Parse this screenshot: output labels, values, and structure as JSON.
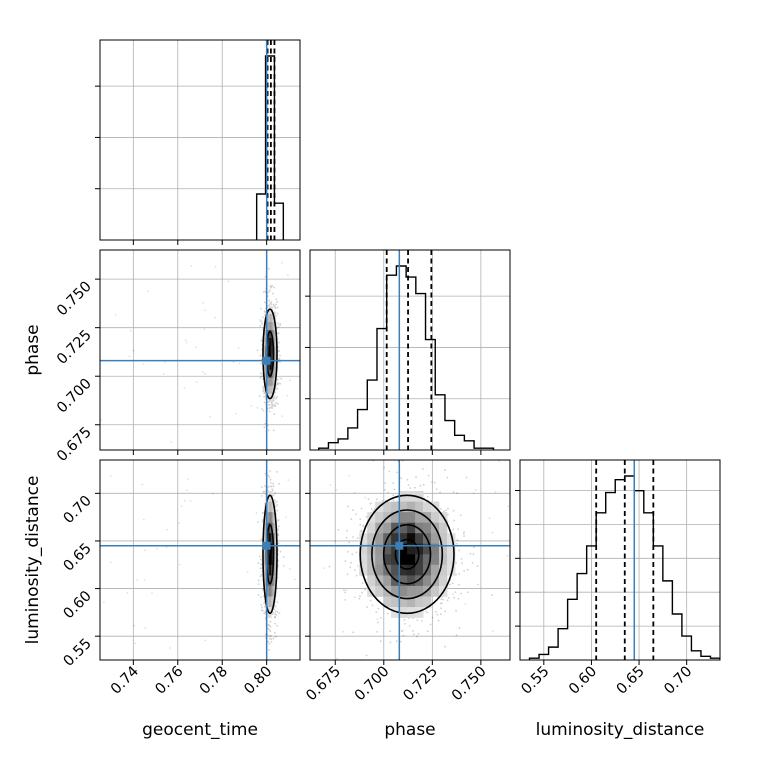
{
  "truth_color": "#3b7fb8",
  "params": [
    {
      "name": "geocent_time",
      "label": "geocent_time",
      "range": [
        0.725,
        0.815
      ],
      "ticks": [
        0.74,
        0.76,
        0.78,
        0.8
      ],
      "tick_labels": [
        "0.74",
        "0.76",
        "0.78",
        "0.80"
      ]
    },
    {
      "name": "phase",
      "label": "phase",
      "range": [
        0.662,
        0.765
      ],
      "ticks": [
        0.675,
        0.7,
        0.725,
        0.75
      ],
      "tick_labels": [
        "0.675",
        "0.700",
        "0.725",
        "0.750"
      ]
    },
    {
      "name": "luminosity_distance",
      "label": "luminosity_distance",
      "range": [
        0.525,
        0.735
      ],
      "ticks": [
        0.55,
        0.6,
        0.65,
        0.7
      ],
      "tick_labels": [
        "0.55",
        "0.60",
        "0.65",
        "0.70"
      ]
    }
  ],
  "chart_data": [
    {
      "type": "bar",
      "title": "",
      "xlabel": "geocent_time",
      "panel": "marginal geocent_time",
      "bin_edges": [
        0.7955,
        0.7995,
        0.8035,
        0.8075
      ],
      "values": [
        0.25,
        1.0,
        0.2
      ],
      "quantiles": [
        0.8004,
        0.8019,
        0.8035
      ],
      "truth": 0.8
    },
    {
      "type": "bar",
      "title": "",
      "xlabel": "phase",
      "panel": "marginal phase",
      "bin_edges": [
        0.6665,
        0.6715,
        0.6765,
        0.6815,
        0.6865,
        0.6915,
        0.6965,
        0.7015,
        0.7065,
        0.7115,
        0.7165,
        0.7215,
        0.7265,
        0.7315,
        0.7365,
        0.7415,
        0.7465,
        0.7515,
        0.7565
      ],
      "values": [
        0.01,
        0.04,
        0.06,
        0.12,
        0.22,
        0.38,
        0.66,
        0.95,
        1.0,
        0.94,
        0.85,
        0.6,
        0.3,
        0.16,
        0.08,
        0.05,
        0.01,
        0.01
      ],
      "quantiles": [
        0.7015,
        0.7125,
        0.7245
      ],
      "truth": 0.708
    },
    {
      "type": "bar",
      "title": "",
      "xlabel": "luminosity_distance",
      "panel": "marginal luminosity_distance",
      "bin_edges": [
        0.535,
        0.545,
        0.555,
        0.565,
        0.575,
        0.585,
        0.595,
        0.605,
        0.615,
        0.625,
        0.635,
        0.645,
        0.655,
        0.665,
        0.675,
        0.685,
        0.695,
        0.705,
        0.715,
        0.725,
        0.735
      ],
      "values": [
        0.01,
        0.03,
        0.07,
        0.17,
        0.33,
        0.47,
        0.62,
        0.8,
        0.91,
        0.98,
        1.0,
        0.92,
        0.8,
        0.62,
        0.43,
        0.25,
        0.13,
        0.05,
        0.02,
        0.01
      ],
      "quantiles": [
        0.605,
        0.635,
        0.665
      ],
      "truth": 0.645
    },
    {
      "type": "scatter",
      "title": "",
      "xlabel": "geocent_time",
      "ylabel": "phase",
      "panel": "2D geocent_time vs phase",
      "center": [
        0.8015,
        0.7115
      ],
      "spread": [
        0.0015,
        0.0115
      ],
      "contour_sigmas": [
        1.0,
        2.0
      ],
      "truth": [
        0.8,
        0.708
      ]
    },
    {
      "type": "scatter",
      "title": "",
      "xlabel": "geocent_time",
      "ylabel": "luminosity_distance",
      "panel": "2D geocent_time vs luminosity_distance",
      "center": [
        0.8015,
        0.636
      ],
      "spread": [
        0.0015,
        0.031
      ],
      "contour_sigmas": [
        1.0,
        2.0
      ],
      "truth": [
        0.8,
        0.645
      ]
    },
    {
      "type": "scatter",
      "title": "",
      "xlabel": "phase",
      "ylabel": "luminosity_distance",
      "panel": "2D phase vs luminosity_distance",
      "center": [
        0.712,
        0.636
      ],
      "spread": [
        0.0115,
        0.031
      ],
      "contour_sigmas": [
        0.5,
        1.0,
        1.5,
        2.0
      ],
      "truth": [
        0.708,
        0.645
      ]
    }
  ]
}
